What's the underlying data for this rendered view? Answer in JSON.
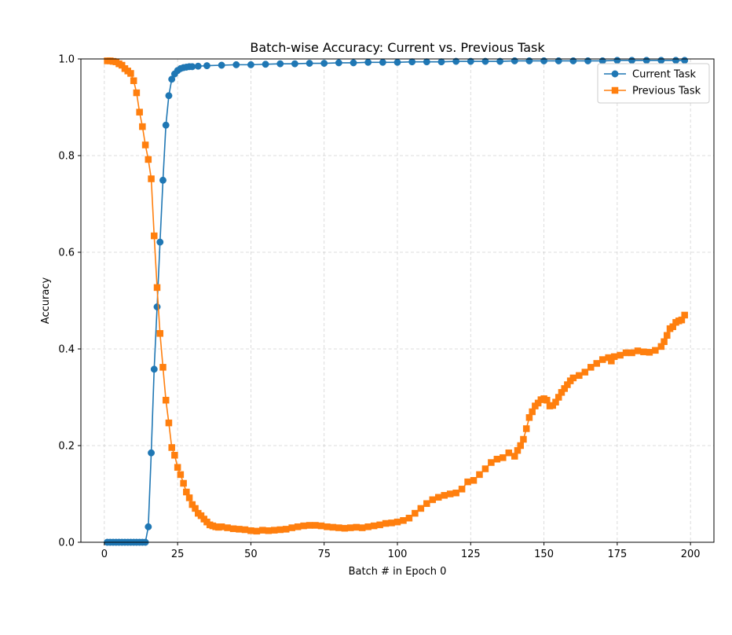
{
  "chart_data": {
    "type": "line",
    "title": "Batch-wise Accuracy: Current vs. Previous Task",
    "xlabel": "Batch # in Epoch 0",
    "ylabel": "Accuracy",
    "xlim": [
      -8,
      208
    ],
    "ylim": [
      0.0,
      1.0
    ],
    "xticks": [
      0,
      25,
      50,
      75,
      100,
      125,
      150,
      175,
      200
    ],
    "yticks": [
      0.0,
      0.2,
      0.4,
      0.6,
      0.8,
      1.0
    ],
    "xtick_labels": [
      "0",
      "25",
      "50",
      "75",
      "100",
      "125",
      "150",
      "175",
      "200"
    ],
    "ytick_labels": [
      "0.0",
      "0.2",
      "0.4",
      "0.6",
      "0.8",
      "1.0"
    ],
    "grid": true,
    "legend_position": "top-right",
    "series": [
      {
        "name": "Current Task",
        "color": "#1f77b4",
        "marker": "circle",
        "points": [
          [
            1,
            0.0
          ],
          [
            2,
            0.0
          ],
          [
            3,
            0.0
          ],
          [
            4,
            0.0
          ],
          [
            5,
            0.0
          ],
          [
            6,
            0.0
          ],
          [
            7,
            0.0
          ],
          [
            8,
            0.0
          ],
          [
            9,
            0.0
          ],
          [
            10,
            0.0
          ],
          [
            11,
            0.0
          ],
          [
            12,
            0.0
          ],
          [
            13,
            0.0
          ],
          [
            14,
            0.0
          ],
          [
            15,
            0.032
          ],
          [
            16,
            0.185
          ],
          [
            17,
            0.358
          ],
          [
            18,
            0.487
          ],
          [
            19,
            0.621
          ],
          [
            20,
            0.749
          ],
          [
            21,
            0.863
          ],
          [
            22,
            0.924
          ],
          [
            23,
            0.958
          ],
          [
            24,
            0.969
          ],
          [
            25,
            0.976
          ],
          [
            26,
            0.98
          ],
          [
            27,
            0.982
          ],
          [
            28,
            0.983
          ],
          [
            29,
            0.984
          ],
          [
            30,
            0.984
          ],
          [
            32,
            0.985
          ],
          [
            35,
            0.986
          ],
          [
            40,
            0.987
          ],
          [
            45,
            0.988
          ],
          [
            50,
            0.988
          ],
          [
            55,
            0.989
          ],
          [
            60,
            0.99
          ],
          [
            65,
            0.99
          ],
          [
            70,
            0.991
          ],
          [
            75,
            0.991
          ],
          [
            80,
            0.992
          ],
          [
            85,
            0.992
          ],
          [
            90,
            0.993
          ],
          [
            95,
            0.993
          ],
          [
            100,
            0.993
          ],
          [
            105,
            0.994
          ],
          [
            110,
            0.994
          ],
          [
            115,
            0.994
          ],
          [
            120,
            0.995
          ],
          [
            125,
            0.995
          ],
          [
            130,
            0.995
          ],
          [
            135,
            0.995
          ],
          [
            140,
            0.996
          ],
          [
            145,
            0.996
          ],
          [
            150,
            0.996
          ],
          [
            155,
            0.996
          ],
          [
            160,
            0.996
          ],
          [
            165,
            0.996
          ],
          [
            170,
            0.996
          ],
          [
            175,
            0.997
          ],
          [
            180,
            0.997
          ],
          [
            185,
            0.997
          ],
          [
            190,
            0.997
          ],
          [
            195,
            0.997
          ],
          [
            198,
            0.997
          ]
        ]
      },
      {
        "name": "Previous Task",
        "color": "#ff7f0e",
        "marker": "square",
        "points": [
          [
            1,
            0.996
          ],
          [
            2,
            0.996
          ],
          [
            3,
            0.995
          ],
          [
            4,
            0.994
          ],
          [
            5,
            0.99
          ],
          [
            6,
            0.987
          ],
          [
            7,
            0.98
          ],
          [
            8,
            0.975
          ],
          [
            9,
            0.97
          ],
          [
            10,
            0.955
          ],
          [
            11,
            0.93
          ],
          [
            12,
            0.89
          ],
          [
            13,
            0.86
          ],
          [
            14,
            0.822
          ],
          [
            15,
            0.792
          ],
          [
            16,
            0.752
          ],
          [
            17,
            0.634
          ],
          [
            18,
            0.527
          ],
          [
            19,
            0.432
          ],
          [
            20,
            0.362
          ],
          [
            21,
            0.294
          ],
          [
            22,
            0.247
          ],
          [
            23,
            0.196
          ],
          [
            24,
            0.18
          ],
          [
            25,
            0.155
          ],
          [
            26,
            0.14
          ],
          [
            27,
            0.122
          ],
          [
            28,
            0.104
          ],
          [
            29,
            0.092
          ],
          [
            30,
            0.078
          ],
          [
            31,
            0.07
          ],
          [
            32,
            0.06
          ],
          [
            33,
            0.055
          ],
          [
            34,
            0.048
          ],
          [
            35,
            0.042
          ],
          [
            36,
            0.036
          ],
          [
            37,
            0.034
          ],
          [
            38,
            0.032
          ],
          [
            39,
            0.031
          ],
          [
            40,
            0.032
          ],
          [
            42,
            0.03
          ],
          [
            44,
            0.028
          ],
          [
            46,
            0.027
          ],
          [
            48,
            0.026
          ],
          [
            50,
            0.024
          ],
          [
            52,
            0.023
          ],
          [
            54,
            0.025
          ],
          [
            56,
            0.024
          ],
          [
            58,
            0.025
          ],
          [
            60,
            0.026
          ],
          [
            62,
            0.027
          ],
          [
            64,
            0.03
          ],
          [
            66,
            0.032
          ],
          [
            68,
            0.034
          ],
          [
            70,
            0.035
          ],
          [
            72,
            0.035
          ],
          [
            74,
            0.034
          ],
          [
            76,
            0.032
          ],
          [
            78,
            0.031
          ],
          [
            80,
            0.03
          ],
          [
            82,
            0.029
          ],
          [
            84,
            0.03
          ],
          [
            86,
            0.031
          ],
          [
            88,
            0.03
          ],
          [
            90,
            0.032
          ],
          [
            92,
            0.034
          ],
          [
            94,
            0.036
          ],
          [
            96,
            0.039
          ],
          [
            98,
            0.04
          ],
          [
            100,
            0.042
          ],
          [
            102,
            0.045
          ],
          [
            104,
            0.05
          ],
          [
            106,
            0.06
          ],
          [
            108,
            0.07
          ],
          [
            110,
            0.08
          ],
          [
            112,
            0.088
          ],
          [
            114,
            0.093
          ],
          [
            116,
            0.097
          ],
          [
            118,
            0.1
          ],
          [
            120,
            0.102
          ],
          [
            122,
            0.11
          ],
          [
            124,
            0.125
          ],
          [
            126,
            0.128
          ],
          [
            128,
            0.14
          ],
          [
            130,
            0.152
          ],
          [
            132,
            0.165
          ],
          [
            134,
            0.172
          ],
          [
            136,
            0.175
          ],
          [
            138,
            0.185
          ],
          [
            140,
            0.178
          ],
          [
            141,
            0.19
          ],
          [
            142,
            0.2
          ],
          [
            143,
            0.213
          ],
          [
            144,
            0.235
          ],
          [
            145,
            0.258
          ],
          [
            146,
            0.27
          ],
          [
            147,
            0.282
          ],
          [
            148,
            0.288
          ],
          [
            149,
            0.295
          ],
          [
            150,
            0.297
          ],
          [
            151,
            0.294
          ],
          [
            152,
            0.282
          ],
          [
            153,
            0.283
          ],
          [
            154,
            0.29
          ],
          [
            155,
            0.3
          ],
          [
            156,
            0.31
          ],
          [
            157,
            0.318
          ],
          [
            158,
            0.326
          ],
          [
            159,
            0.334
          ],
          [
            160,
            0.34
          ],
          [
            162,
            0.345
          ],
          [
            164,
            0.352
          ],
          [
            166,
            0.362
          ],
          [
            168,
            0.37
          ],
          [
            170,
            0.378
          ],
          [
            172,
            0.382
          ],
          [
            173,
            0.375
          ],
          [
            174,
            0.384
          ],
          [
            176,
            0.387
          ],
          [
            178,
            0.392
          ],
          [
            180,
            0.392
          ],
          [
            182,
            0.396
          ],
          [
            184,
            0.394
          ],
          [
            186,
            0.393
          ],
          [
            188,
            0.397
          ],
          [
            190,
            0.405
          ],
          [
            191,
            0.415
          ],
          [
            192,
            0.428
          ],
          [
            193,
            0.442
          ],
          [
            194,
            0.446
          ],
          [
            195,
            0.455
          ],
          [
            196,
            0.458
          ],
          [
            197,
            0.46
          ],
          [
            198,
            0.47
          ]
        ]
      }
    ]
  }
}
